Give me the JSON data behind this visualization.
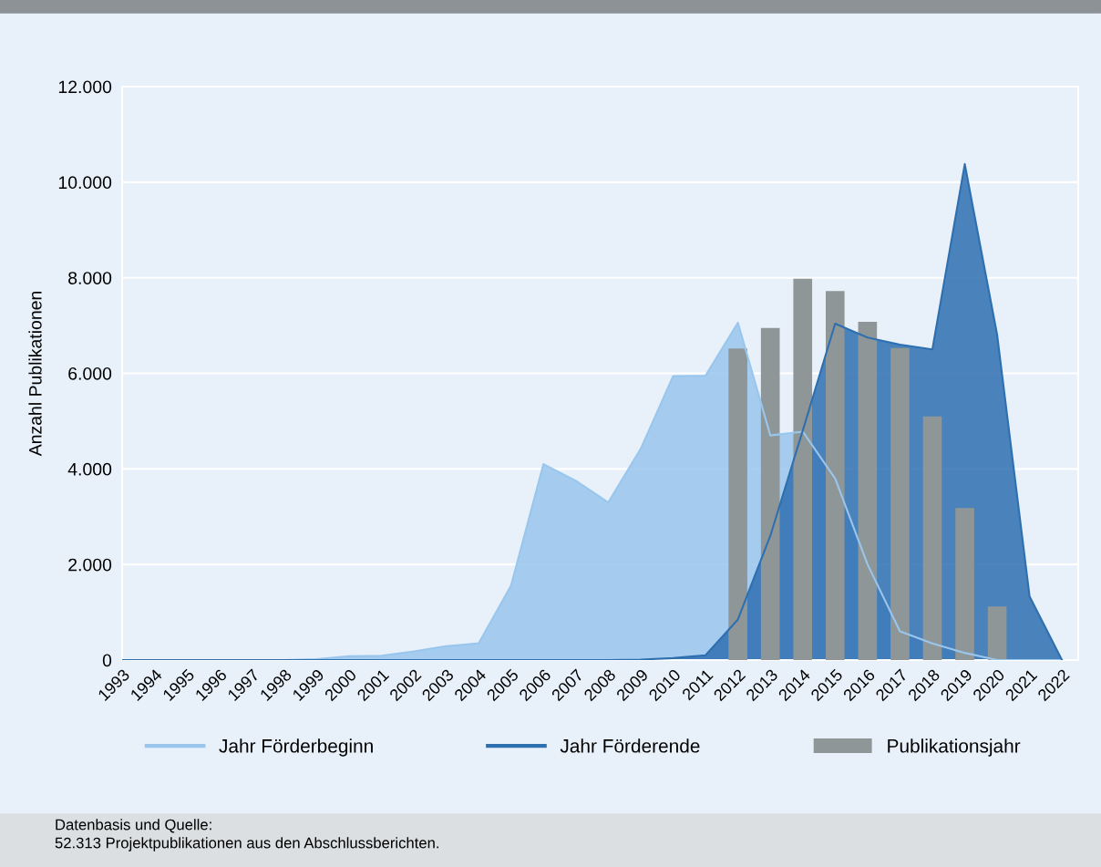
{
  "chart_data": {
    "type": "area",
    "ylabel": "Anzahl Publikationen",
    "categories": [
      "1993",
      "1994",
      "1995",
      "1996",
      "1997",
      "1998",
      "1999",
      "2000",
      "2001",
      "2002",
      "2003",
      "2004",
      "2005",
      "2006",
      "2007",
      "2008",
      "2009",
      "2010",
      "2011",
      "2012",
      "2013",
      "2014",
      "2015",
      "2016",
      "2017",
      "2018",
      "2019",
      "2020",
      "2021",
      "2022"
    ],
    "series": [
      {
        "name": "Jahr Förderbeginn",
        "color": "#99c6ec",
        "values": [
          0,
          0,
          0,
          0,
          0,
          0,
          20,
          80,
          90,
          180,
          290,
          350,
          1560,
          4100,
          3750,
          3300,
          4420,
          5940,
          5950,
          7060,
          4700,
          4780,
          3800,
          2000,
          600,
          350,
          150,
          0,
          0,
          0
        ]
      },
      {
        "name": "Jahr Förderende",
        "color": "#2e6fb0",
        "values": [
          0,
          0,
          0,
          0,
          0,
          0,
          0,
          0,
          0,
          0,
          0,
          0,
          0,
          0,
          0,
          0,
          10,
          40,
          100,
          850,
          2600,
          4800,
          7040,
          6750,
          6600,
          6500,
          10380,
          6800,
          1330,
          0
        ]
      },
      {
        "name": "Publikationsjahr",
        "type": "bar",
        "color": "#8f9698",
        "values": [
          null,
          null,
          null,
          null,
          null,
          null,
          null,
          null,
          null,
          null,
          null,
          null,
          null,
          null,
          null,
          null,
          null,
          null,
          null,
          6520,
          6950,
          7980,
          7720,
          7080,
          6530,
          5100,
          3180,
          1120,
          null,
          null
        ]
      }
    ],
    "ylim": [
      0,
      12000
    ],
    "yticks": [
      {
        "value": 0,
        "label": "0"
      },
      {
        "value": 2000,
        "label": "2.000"
      },
      {
        "value": 4000,
        "label": "4.000"
      },
      {
        "value": 6000,
        "label": "6.000"
      },
      {
        "value": 8000,
        "label": "8.000"
      },
      {
        "value": 10000,
        "label": "10.000"
      },
      {
        "value": 12000,
        "label": "12.000"
      }
    ],
    "grid": "y",
    "legend": "bottom",
    "annotations": [
      "Datenbasis und Quelle:",
      "52.313 Projektpublikationen aus den Abschlussberichten."
    ]
  }
}
